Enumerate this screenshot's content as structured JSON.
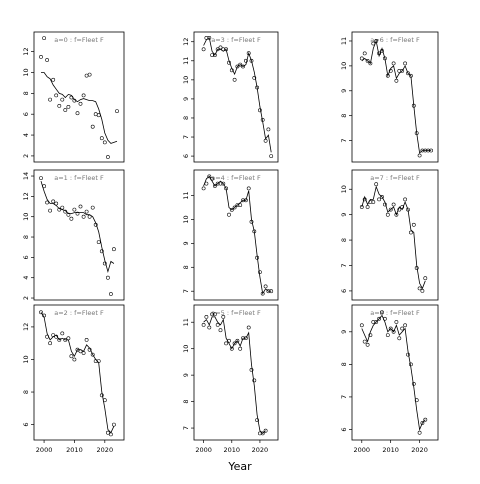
{
  "figure": {
    "xlabel": "Year",
    "fleet_label": "f=Fleet F"
  },
  "chart_data": [
    {
      "type": "scatter+line",
      "panel": "a=0",
      "title": "a=0 : f=Fleet F",
      "xlim": [
        1998,
        2025
      ],
      "ylim": [
        1.8,
        13.5
      ],
      "yticks": [
        2,
        4,
        6,
        8,
        10,
        12
      ],
      "xticks": [],
      "x": [
        1999,
        2000,
        2001,
        2002,
        2003,
        2004,
        2005,
        2006,
        2007,
        2008,
        2009,
        2010,
        2011,
        2012,
        2013,
        2014,
        2015,
        2016,
        2017,
        2018,
        2019,
        2020,
        2021,
        2022,
        2023,
        2024
      ],
      "observed": [
        11.5,
        13.3,
        11.2,
        7.4,
        9.3,
        7.8,
        6.8,
        7.4,
        6.4,
        6.7,
        7.6,
        7.3,
        6.1,
        7.0,
        7.8,
        9.7,
        9.8,
        4.8,
        6.0,
        5.9,
        3.7,
        3.3,
        1.9,
        null,
        null,
        6.3
      ],
      "fitted": [
        10.0,
        10.0,
        9.6,
        9.4,
        8.8,
        8.4,
        8.0,
        7.9,
        7.6,
        7.9,
        7.8,
        7.4,
        7.2,
        7.4,
        7.5,
        7.4,
        7.3,
        7.3,
        7.2,
        6.5,
        5.5,
        4.2,
        3.5,
        3.2,
        3.3,
        3.4
      ]
    },
    {
      "type": "scatter+line",
      "panel": "a=3",
      "title": "a=3 : f=Fleet F",
      "xlim": [
        1998,
        2025
      ],
      "ylim": [
        5.9,
        12.3
      ],
      "yticks": [
        6,
        7,
        8,
        9,
        10,
        11,
        12
      ],
      "xticks": [],
      "x": [
        2000,
        2001,
        2002,
        2003,
        2004,
        2005,
        2006,
        2007,
        2008,
        2009,
        2010,
        2011,
        2012,
        2013,
        2014,
        2015,
        2016,
        2017,
        2018,
        2019,
        2020,
        2021,
        2022,
        2023,
        2024
      ],
      "observed": [
        11.6,
        12.2,
        12.2,
        11.3,
        11.3,
        11.6,
        11.7,
        11.6,
        11.6,
        10.9,
        10.5,
        10.0,
        10.7,
        10.8,
        10.7,
        11.0,
        11.4,
        11.0,
        10.1,
        9.6,
        8.4,
        7.9,
        6.8,
        7.4,
        6.0
      ],
      "fitted": [
        11.8,
        12.1,
        12.2,
        11.5,
        11.3,
        11.6,
        11.6,
        11.5,
        11.6,
        11.0,
        10.6,
        10.3,
        10.7,
        10.8,
        10.7,
        10.8,
        11.4,
        11.0,
        10.4,
        9.6,
        8.6,
        7.8,
        6.9,
        7.1,
        6.2
      ]
    },
    {
      "type": "scatter+line",
      "panel": "a=6",
      "title": "a=6 : f=Fleet F",
      "xlim": [
        1998,
        2025
      ],
      "ylim": [
        6.3,
        11.2
      ],
      "yticks": [
        7,
        8,
        9,
        10,
        11
      ],
      "xticks": [],
      "x": [
        2000,
        2001,
        2002,
        2003,
        2004,
        2005,
        2006,
        2007,
        2008,
        2009,
        2010,
        2011,
        2012,
        2013,
        2014,
        2015,
        2016,
        2017,
        2018,
        2019,
        2020,
        2021,
        2022,
        2023,
        2024
      ],
      "observed": [
        10.3,
        10.5,
        10.2,
        10.1,
        10.9,
        11.0,
        10.5,
        10.6,
        10.3,
        9.6,
        9.8,
        10.1,
        9.4,
        9.8,
        9.8,
        10.1,
        9.7,
        9.6,
        8.4,
        7.3,
        6.4,
        6.6,
        6.6,
        6.6,
        6.6
      ],
      "fitted": [
        10.2,
        10.3,
        10.2,
        10.1,
        10.7,
        11.0,
        10.4,
        10.7,
        10.3,
        9.6,
        9.9,
        10.0,
        9.5,
        9.7,
        9.8,
        10.0,
        9.7,
        9.6,
        8.4,
        7.3,
        6.5,
        6.6,
        6.6,
        6.6,
        6.6
      ]
    },
    {
      "type": "scatter+line",
      "panel": "a=1",
      "title": "a=1 : f=Fleet F",
      "xlim": [
        1998,
        2025
      ],
      "ylim": [
        2.2,
        14.2
      ],
      "yticks": [
        2,
        4,
        6,
        8,
        10,
        12,
        14
      ],
      "xticks": [],
      "x": [
        1999,
        2000,
        2001,
        2002,
        2003,
        2004,
        2005,
        2006,
        2007,
        2008,
        2009,
        2010,
        2011,
        2012,
        2013,
        2014,
        2015,
        2016,
        2017,
        2018,
        2019,
        2020,
        2021,
        2022,
        2023,
        2024
      ],
      "observed": [
        13.8,
        13.0,
        11.4,
        10.6,
        11.5,
        11.3,
        10.7,
        10.9,
        10.5,
        10.2,
        9.8,
        10.7,
        10.3,
        11.0,
        10.0,
        10.5,
        10.0,
        10.9,
        9.2,
        7.5,
        6.6,
        5.4,
        4.0,
        2.4,
        6.8,
        null
      ],
      "fitted": [
        13.5,
        12.5,
        11.7,
        11.3,
        11.3,
        11.1,
        10.8,
        10.7,
        10.6,
        10.3,
        10.3,
        10.4,
        10.4,
        10.4,
        10.4,
        10.2,
        10.2,
        10.0,
        9.4,
        8.5,
        7.0,
        5.7,
        4.6,
        5.6,
        5.4,
        null
      ]
    },
    {
      "type": "scatter+line",
      "panel": "a=4",
      "title": "a=4 : f=Fleet F",
      "xlim": [
        1998,
        2025
      ],
      "ylim": [
        6.8,
        11.9
      ],
      "yticks": [
        7,
        8,
        9,
        10,
        11
      ],
      "xticks": [],
      "x": [
        2000,
        2001,
        2002,
        2003,
        2004,
        2005,
        2006,
        2007,
        2008,
        2009,
        2010,
        2011,
        2012,
        2013,
        2014,
        2015,
        2016,
        2017,
        2018,
        2019,
        2020,
        2021,
        2022,
        2023,
        2024
      ],
      "observed": [
        11.3,
        11.5,
        11.8,
        11.7,
        11.4,
        11.5,
        11.5,
        11.5,
        11.3,
        10.2,
        10.4,
        10.5,
        10.6,
        10.6,
        10.8,
        10.8,
        11.3,
        9.9,
        9.5,
        8.4,
        7.8,
        6.9,
        7.2,
        7.0,
        7.0
      ],
      "fitted": [
        11.4,
        11.7,
        11.8,
        11.6,
        11.4,
        11.5,
        11.6,
        11.5,
        11.3,
        10.5,
        10.4,
        10.5,
        10.6,
        10.7,
        10.8,
        10.8,
        11.2,
        10.0,
        9.5,
        8.5,
        7.6,
        6.9,
        7.1,
        7.0,
        7.0
      ]
    },
    {
      "type": "scatter+line",
      "panel": "a=7",
      "title": "a=7 : f=Fleet F",
      "xlim": [
        1998,
        2025
      ],
      "ylim": [
        5.8,
        10.6
      ],
      "yticks": [
        6,
        7,
        8,
        9,
        10
      ],
      "xticks": [],
      "x": [
        2000,
        2001,
        2002,
        2003,
        2004,
        2005,
        2006,
        2007,
        2008,
        2009,
        2010,
        2011,
        2012,
        2013,
        2014,
        2015,
        2016,
        2017,
        2018,
        2019,
        2020,
        2021,
        2022,
        2023,
        2024
      ],
      "observed": [
        9.3,
        9.6,
        9.3,
        9.5,
        9.5,
        10.2,
        9.6,
        9.7,
        9.4,
        9.0,
        9.2,
        9.4,
        9.0,
        9.2,
        9.3,
        9.6,
        9.2,
        8.3,
        8.6,
        6.9,
        6.1,
        6.0,
        6.5,
        null,
        null
      ],
      "fitted": [
        9.3,
        9.7,
        9.4,
        9.6,
        9.6,
        10.1,
        9.8,
        9.7,
        9.5,
        9.1,
        9.2,
        9.3,
        9.0,
        9.3,
        9.2,
        9.5,
        9.2,
        8.4,
        8.3,
        7.0,
        6.3,
        6.1,
        6.4,
        null,
        null
      ]
    },
    {
      "type": "scatter+line",
      "panel": "a=2",
      "title": "a=2 : f=Fleet F",
      "xlim": [
        1998,
        2025
      ],
      "ylim": [
        5.3,
        13.1
      ],
      "yticks": [
        6,
        8,
        10,
        12
      ],
      "xticks": [
        2000,
        2010,
        2020
      ],
      "x": [
        1999,
        2000,
        2001,
        2002,
        2003,
        2004,
        2005,
        2006,
        2007,
        2008,
        2009,
        2010,
        2011,
        2012,
        2013,
        2014,
        2015,
        2016,
        2017,
        2018,
        2019,
        2020,
        2021,
        2022,
        2023,
        2024
      ],
      "observed": [
        12.9,
        12.7,
        11.4,
        11.0,
        11.5,
        11.4,
        11.2,
        11.6,
        11.2,
        11.3,
        10.2,
        10.0,
        10.6,
        10.5,
        10.4,
        11.2,
        10.6,
        10.3,
        9.9,
        9.9,
        7.8,
        7.5,
        5.5,
        5.4,
        6.0,
        null
      ],
      "fitted": [
        12.9,
        12.6,
        11.6,
        11.2,
        11.4,
        11.5,
        11.2,
        11.3,
        11.2,
        11.2,
        10.5,
        10.2,
        10.6,
        10.6,
        10.5,
        10.9,
        10.7,
        10.3,
        10.0,
        9.8,
        8.0,
        7.0,
        5.7,
        5.5,
        5.9,
        null
      ]
    },
    {
      "type": "scatter+line",
      "panel": "a=5",
      "title": "a=5 : f=Fleet F",
      "xlim": [
        1998,
        2025
      ],
      "ylim": [
        6.7,
        11.5
      ],
      "yticks": [
        7,
        8,
        9,
        10,
        11
      ],
      "xticks": [
        2000,
        2010,
        2020
      ],
      "x": [
        2000,
        2001,
        2002,
        2003,
        2004,
        2005,
        2006,
        2007,
        2008,
        2009,
        2010,
        2011,
        2012,
        2013,
        2014,
        2015,
        2016,
        2017,
        2018,
        2019,
        2020,
        2021,
        2022,
        2023,
        2024
      ],
      "observed": [
        10.9,
        11.2,
        10.8,
        11.3,
        11.3,
        10.9,
        10.7,
        11.2,
        10.2,
        10.3,
        10.0,
        10.2,
        10.3,
        10.0,
        10.4,
        10.4,
        10.8,
        9.2,
        8.8,
        7.3,
        6.8,
        6.8,
        6.9,
        null,
        null
      ],
      "fitted": [
        11.0,
        11.1,
        10.9,
        11.2,
        11.2,
        11.0,
        10.9,
        11.1,
        10.4,
        10.2,
        10.0,
        10.2,
        10.3,
        10.1,
        10.4,
        10.4,
        10.6,
        9.4,
        8.6,
        7.5,
        6.9,
        6.8,
        6.9,
        null,
        null
      ]
    },
    {
      "type": "scatter+line",
      "panel": "a=8",
      "title": "a=8 : f=Fleet F",
      "xlim": [
        1998,
        2025
      ],
      "ylim": [
        5.8,
        9.7
      ],
      "yticks": [
        6,
        7,
        8,
        9
      ],
      "xticks": [
        2000,
        2010,
        2020
      ],
      "x": [
        2000,
        2001,
        2002,
        2003,
        2004,
        2005,
        2006,
        2007,
        2008,
        2009,
        2010,
        2011,
        2012,
        2013,
        2014,
        2015,
        2016,
        2017,
        2018,
        2019,
        2020,
        2021,
        2022,
        2023,
        2024
      ],
      "observed": [
        9.2,
        8.7,
        8.6,
        8.9,
        9.3,
        9.3,
        9.4,
        9.6,
        9.4,
        8.9,
        9.1,
        9.0,
        9.3,
        8.8,
        9.1,
        9.2,
        8.3,
        8.0,
        7.4,
        6.9,
        5.9,
        6.2,
        6.3,
        null,
        null
      ],
      "fitted": [
        9.1,
        8.9,
        8.7,
        9.0,
        9.2,
        9.3,
        9.4,
        9.5,
        9.3,
        9.0,
        9.1,
        9.0,
        9.2,
        8.9,
        9.0,
        9.1,
        8.4,
        7.9,
        7.3,
        6.6,
        6.0,
        6.2,
        6.3,
        null,
        null
      ]
    }
  ]
}
